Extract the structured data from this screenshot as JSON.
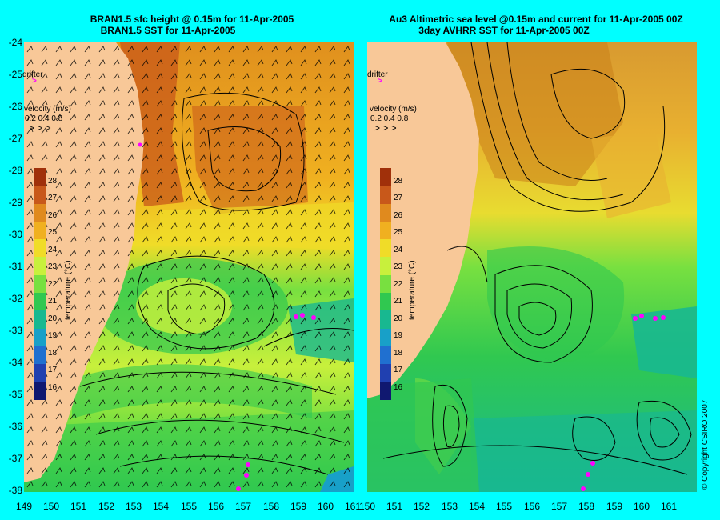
{
  "left_panel": {
    "title_line1": "BRAN1.5 sfc height @ 0.15m for 11-Apr-2005",
    "title_line2": "BRAN1.5 SST for 11-Apr-2005"
  },
  "right_panel": {
    "title_line1": "Au3 Altimetric sea level  @0.15m and current for 11-Apr-2005 00Z",
    "title_line2": "3day AVHRR SST for 11-Apr-2005 00Z"
  },
  "legend": {
    "drifter_label": "drifter",
    "velocity_label": "velocity (m/s)",
    "velocity_values": "0.2 0.4 0.8"
  },
  "colorbar": {
    "title": "temperature (°C)",
    "ticks": [
      "28",
      "27",
      "26",
      "25",
      "24",
      "23",
      "22",
      "21",
      "20",
      "19",
      "18",
      "17",
      "16"
    ],
    "colors": [
      "#a0300a",
      "#c8581a",
      "#e08a1e",
      "#f0b020",
      "#f0dc28",
      "#c8f03c",
      "#78e040",
      "#30c850",
      "#18b890",
      "#18a0c8",
      "#2070d0",
      "#2040b0",
      "#101870"
    ]
  },
  "y_axis": {
    "ticks": [
      "-24",
      "-25",
      "-26",
      "-27",
      "-28",
      "-29",
      "-30",
      "-31",
      "-32",
      "-33",
      "-34",
      "-35",
      "-36",
      "-37",
      "-38"
    ]
  },
  "x_axis": {
    "left_ticks": [
      "149",
      "150",
      "151",
      "152",
      "153",
      "154",
      "155",
      "156",
      "157",
      "158",
      "159",
      "160",
      "161"
    ],
    "right_ticks": [
      "150",
      "151",
      "152",
      "153",
      "154",
      "155",
      "156",
      "157",
      "158",
      "159",
      "160",
      "161"
    ]
  },
  "copyright": "© Copyright CSIRO 2007"
}
